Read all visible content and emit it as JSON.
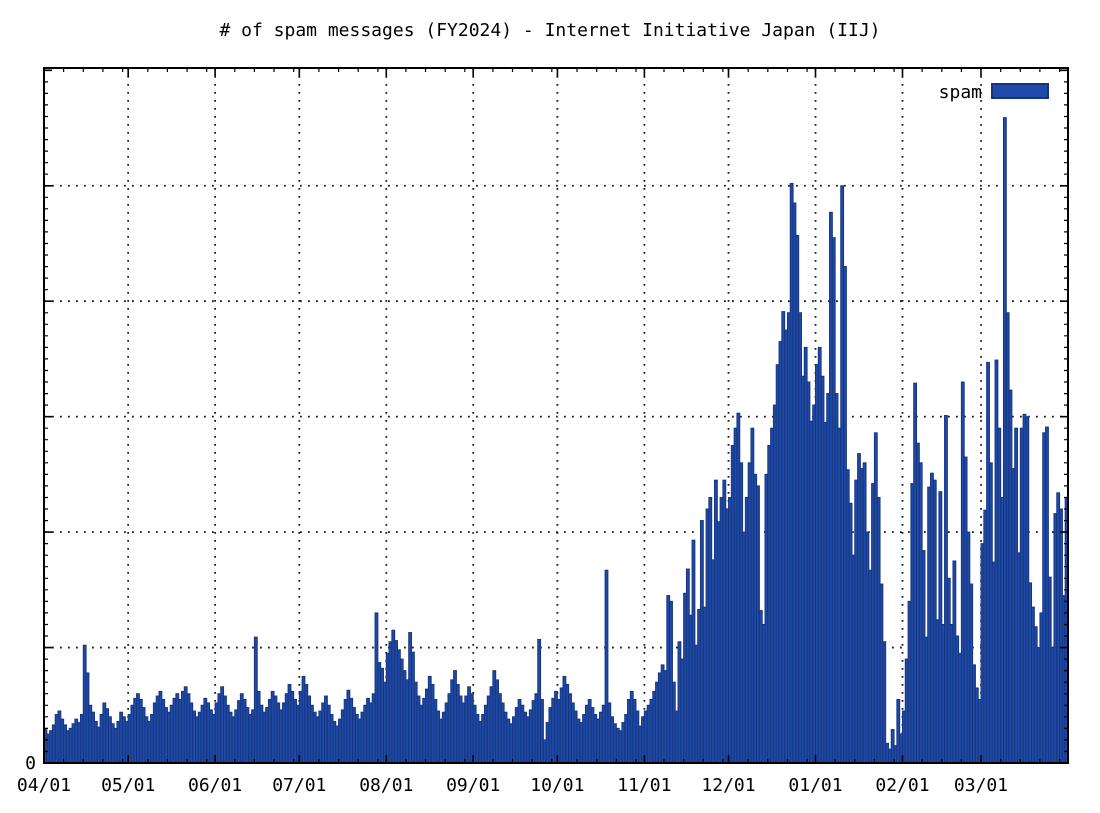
{
  "title": "# of spam messages (FY2024) - Internet Initiative Japan (IIJ)",
  "legend": {
    "label": "spam"
  },
  "colors": {
    "bar_fill": "#1f4aa8",
    "bar_border": "#16357d",
    "axis": "#000000",
    "grid_dots": "#1a1a1a",
    "background": "#ffffff",
    "text": "#000000"
  },
  "y_axis": {
    "visible_labels": [
      "0"
    ],
    "note": "only 0 is labeled; 5 unlabeled dotted gridlines above it"
  },
  "x_axis": {
    "tick_labels": [
      "04/01",
      "05/01",
      "06/01",
      "07/01",
      "08/01",
      "09/01",
      "10/01",
      "11/01",
      "12/01",
      "01/01",
      "02/01",
      "03/01"
    ]
  },
  "chart_data": {
    "type": "bar",
    "title": "# of spam messages (FY2024) - Internet Initiative Japan (IIJ)",
    "xlabel": "",
    "ylabel": "",
    "x_unit": "day (Apr 1 2024 - Mar 31 2025)",
    "x_range_days": 365,
    "x_tick_labels": [
      "04/01",
      "05/01",
      "06/01",
      "07/01",
      "08/01",
      "09/01",
      "10/01",
      "11/01",
      "12/01",
      "01/01",
      "02/01",
      "03/01"
    ],
    "month_start_days": [
      0,
      30,
      61,
      91,
      122,
      153,
      183,
      214,
      244,
      275,
      306,
      334
    ],
    "month_lengths": [
      30,
      31,
      30,
      31,
      31,
      30,
      31,
      30,
      31,
      31,
      28,
      31
    ],
    "ylim": [
      0,
      6.02
    ],
    "y_gridlines": [
      1,
      2,
      3,
      4,
      5
    ],
    "y_tick_label_shown": "0",
    "y_value_note": "y values are in unlabeled gridline units (1 unit = one dotted gridline interval)",
    "grid": "dotted",
    "legend": {
      "label": "spam",
      "position": "top-right-inside"
    },
    "series": [
      {
        "name": "spam",
        "values": [
          0.3,
          0.25,
          0.28,
          0.33,
          0.42,
          0.45,
          0.38,
          0.33,
          0.28,
          0.3,
          0.34,
          0.38,
          0.35,
          0.42,
          1.02,
          0.78,
          0.5,
          0.44,
          0.36,
          0.31,
          0.42,
          0.52,
          0.47,
          0.4,
          0.34,
          0.3,
          0.36,
          0.44,
          0.4,
          0.36,
          0.42,
          0.5,
          0.56,
          0.6,
          0.55,
          0.48,
          0.4,
          0.36,
          0.42,
          0.52,
          0.58,
          0.62,
          0.55,
          0.48,
          0.44,
          0.5,
          0.56,
          0.6,
          0.55,
          0.62,
          0.66,
          0.6,
          0.52,
          0.45,
          0.4,
          0.44,
          0.5,
          0.56,
          0.52,
          0.46,
          0.42,
          0.52,
          0.6,
          0.66,
          0.58,
          0.5,
          0.44,
          0.4,
          0.46,
          0.54,
          0.6,
          0.55,
          0.48,
          0.42,
          0.46,
          1.09,
          0.62,
          0.5,
          0.44,
          0.48,
          0.55,
          0.62,
          0.58,
          0.52,
          0.46,
          0.52,
          0.6,
          0.68,
          0.62,
          0.55,
          0.5,
          0.62,
          0.75,
          0.68,
          0.58,
          0.5,
          0.44,
          0.4,
          0.45,
          0.52,
          0.58,
          0.5,
          0.42,
          0.36,
          0.32,
          0.38,
          0.46,
          0.55,
          0.63,
          0.56,
          0.48,
          0.42,
          0.38,
          0.44,
          0.5,
          0.56,
          0.52,
          0.6,
          1.3,
          0.87,
          0.82,
          0.7,
          0.95,
          1.05,
          1.15,
          1.06,
          0.98,
          0.9,
          0.8,
          0.72,
          1.13,
          0.96,
          0.7,
          0.58,
          0.5,
          0.56,
          0.64,
          0.75,
          0.68,
          0.55,
          0.45,
          0.38,
          0.44,
          0.52,
          0.6,
          0.72,
          0.8,
          0.68,
          0.58,
          0.52,
          0.58,
          0.66,
          0.6,
          0.5,
          0.42,
          0.36,
          0.42,
          0.5,
          0.58,
          0.66,
          0.8,
          0.72,
          0.6,
          0.52,
          0.44,
          0.38,
          0.34,
          0.4,
          0.48,
          0.55,
          0.5,
          0.44,
          0.4,
          0.46,
          0.54,
          0.6,
          1.07,
          0.55,
          0.2,
          0.35,
          0.48,
          0.56,
          0.62,
          0.55,
          0.65,
          0.75,
          0.68,
          0.6,
          0.52,
          0.45,
          0.38,
          0.35,
          0.42,
          0.5,
          0.55,
          0.48,
          0.42,
          0.38,
          0.44,
          0.5,
          1.67,
          0.52,
          0.4,
          0.34,
          0.3,
          0.28,
          0.35,
          0.42,
          0.55,
          0.62,
          0.55,
          0.45,
          0.32,
          0.4,
          0.45,
          0.5,
          0.55,
          0.62,
          0.7,
          0.78,
          0.85,
          0.8,
          1.45,
          1.4,
          0.7,
          0.45,
          1.05,
          0.9,
          1.47,
          1.68,
          1.28,
          1.93,
          1.02,
          1.33,
          2.1,
          1.35,
          2.2,
          2.3,
          1.76,
          2.45,
          2.09,
          2.3,
          2.45,
          2.2,
          2.3,
          2.75,
          2.9,
          3.03,
          2.6,
          2.0,
          2.3,
          2.6,
          2.9,
          2.5,
          2.4,
          1.32,
          1.2,
          2.5,
          2.75,
          2.9,
          3.1,
          3.45,
          3.65,
          3.91,
          3.75,
          3.9,
          5.02,
          4.85,
          4.57,
          3.9,
          3.35,
          3.6,
          3.3,
          2.96,
          3.1,
          3.45,
          3.6,
          3.35,
          2.95,
          3.2,
          4.77,
          4.55,
          3.2,
          2.9,
          5.0,
          4.3,
          2.54,
          2.25,
          1.8,
          2.45,
          2.68,
          2.55,
          2.6,
          2.0,
          1.67,
          2.42,
          2.86,
          2.3,
          1.55,
          1.05,
          0.17,
          0.12,
          0.29,
          0.15,
          0.55,
          0.25,
          0.45,
          0.9,
          1.4,
          2.42,
          3.29,
          2.77,
          2.6,
          1.84,
          1.09,
          2.39,
          2.51,
          2.45,
          1.24,
          2.35,
          1.2,
          3.01,
          1.6,
          1.2,
          1.75,
          1.1,
          0.95,
          3.3,
          2.65,
          2.0,
          1.55,
          0.85,
          0.65,
          0.55,
          1.9,
          2.19,
          3.47,
          2.6,
          1.74,
          3.49,
          2.9,
          2.3,
          5.59,
          3.9,
          3.23,
          2.55,
          2.9,
          1.82,
          2.9,
          3.02,
          3.0,
          1.56,
          1.35,
          1.18,
          1.0,
          1.3,
          2.86,
          2.91,
          1.61,
          1.0,
          2.16,
          2.34,
          2.2,
          1.45,
          2.3
        ]
      }
    ]
  }
}
